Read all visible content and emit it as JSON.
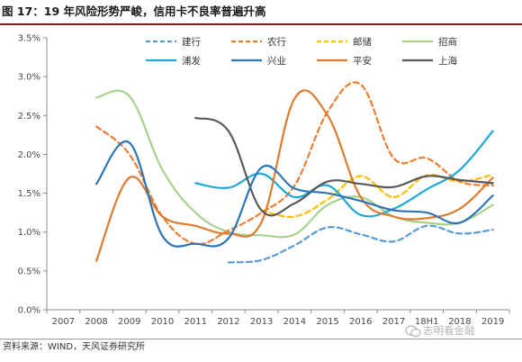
{
  "header": {
    "title": "图 17：19 年风险形势严峻，信用卡不良率普遍升高"
  },
  "footer": {
    "source": "资料来源：WIND，天风证券研究所",
    "watermark": "志明看金融"
  },
  "chart_data": {
    "type": "line",
    "categories": [
      "2007",
      "2008",
      "2009",
      "2010",
      "2011",
      "2012",
      "2013",
      "2014",
      "2015",
      "2016",
      "2017",
      "18H1",
      "2018",
      "2019"
    ],
    "ylim": [
      0,
      3.5
    ],
    "yticks": [
      "0.0%",
      "0.5%",
      "1.0%",
      "1.5%",
      "2.0%",
      "2.5%",
      "3.0%",
      "3.5%"
    ],
    "legend_position": "top",
    "grid": false,
    "series": [
      {
        "name": "建行",
        "color": "#5b9bd5",
        "dash": "dashed",
        "values": [
          null,
          null,
          null,
          null,
          null,
          0.61,
          0.64,
          0.83,
          1.06,
          0.97,
          0.88,
          1.08,
          0.98,
          1.03
        ]
      },
      {
        "name": "农行",
        "color": "#ed7d31",
        "dash": "dashed",
        "values": [
          null,
          2.36,
          2.0,
          1.2,
          0.85,
          1.02,
          1.25,
          1.6,
          2.55,
          2.9,
          1.95,
          1.95,
          1.65,
          1.6
        ]
      },
      {
        "name": "邮储",
        "color": "#ffc000",
        "dash": "dashed",
        "values": [
          null,
          null,
          null,
          null,
          null,
          null,
          1.28,
          1.2,
          1.42,
          1.72,
          1.45,
          1.73,
          1.65,
          1.74
        ]
      },
      {
        "name": "招商",
        "color": "#a9d18e",
        "dash": "solid",
        "values": [
          null,
          2.73,
          2.75,
          1.8,
          1.25,
          1.0,
          0.96,
          0.97,
          1.35,
          1.45,
          1.2,
          1.12,
          1.12,
          1.35
        ]
      },
      {
        "name": "浦发",
        "color": "#1fa8d8",
        "dash": "solid",
        "values": [
          null,
          null,
          null,
          null,
          1.63,
          1.57,
          1.75,
          1.45,
          1.6,
          1.22,
          1.3,
          1.55,
          1.8,
          2.3
        ]
      },
      {
        "name": "兴业",
        "color": "#2e75b6",
        "dash": "solid",
        "values": [
          null,
          1.62,
          2.15,
          0.95,
          0.85,
          0.92,
          1.83,
          1.56,
          1.5,
          1.4,
          1.28,
          1.25,
          1.12,
          1.47
        ]
      },
      {
        "name": "平安",
        "color": "#e07b2e",
        "dash": "solid",
        "values": [
          null,
          0.63,
          1.7,
          1.2,
          1.08,
          0.98,
          1.13,
          2.72,
          2.5,
          1.45,
          1.2,
          1.18,
          1.3,
          1.7
        ]
      },
      {
        "name": "上海",
        "color": "#595959",
        "dash": "solid",
        "values": [
          null,
          null,
          null,
          null,
          2.47,
          2.3,
          1.28,
          1.37,
          1.65,
          1.62,
          1.58,
          1.72,
          1.67,
          1.63
        ]
      }
    ]
  }
}
